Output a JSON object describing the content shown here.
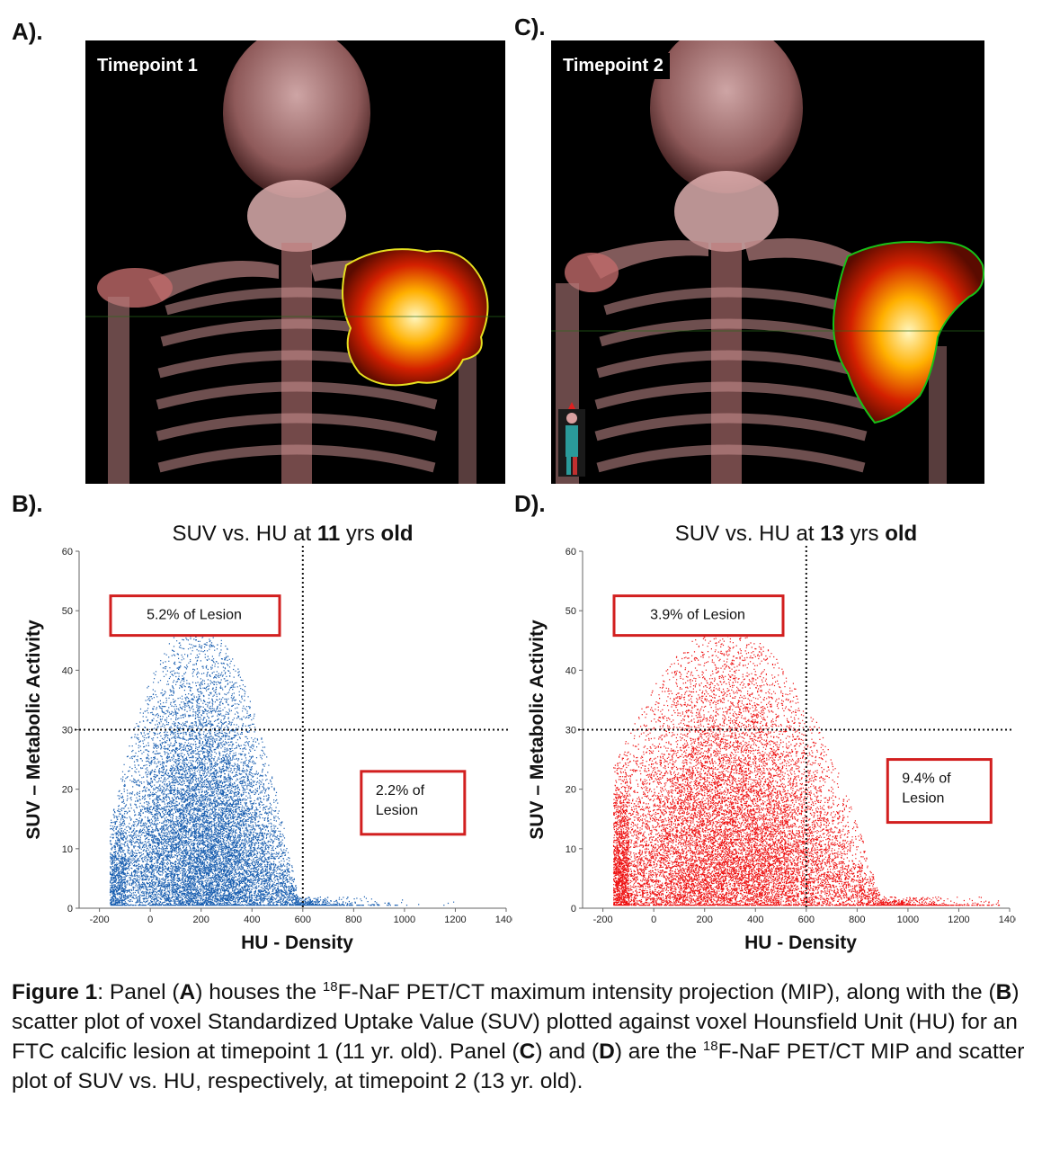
{
  "panels": {
    "A": {
      "letter": "A).",
      "label": "Timepoint 1"
    },
    "B": {
      "letter": "B)."
    },
    "C": {
      "letter": "C).",
      "label": "Timepoint 2"
    },
    "D": {
      "letter": "D)."
    }
  },
  "chart_data": [
    {
      "type": "scatter",
      "title_prefix": "SUV vs. HU at ",
      "title_bold_num": "11",
      "title_mid": " yrs ",
      "title_bold_end": "old",
      "xlabel": "HU - Density",
      "ylabel": "SUV – Metabolic Activity",
      "xlim": [
        -280,
        1400
      ],
      "ylim": [
        0,
        60
      ],
      "xticks": [
        -200,
        0,
        200,
        400,
        600,
        800,
        1000,
        1200,
        1400
      ],
      "yticks": [
        0,
        10,
        20,
        30,
        40,
        50,
        60
      ],
      "threshold_x": 600,
      "threshold_y": 30,
      "color": "#1a5fb0",
      "cloud": {
        "center_hu": 200,
        "spread_hu": 170,
        "max_hu": 1350,
        "peak_suv": 48,
        "n_points": 14000
      },
      "annotations": [
        {
          "text": "5.2% of Lesion",
          "region": "upper-left"
        },
        {
          "text_lines": [
            "2.2% of",
            "Lesion"
          ],
          "region": "right"
        }
      ]
    },
    {
      "type": "scatter",
      "title_prefix": "SUV vs. HU at ",
      "title_bold_num": "13",
      "title_mid": " yrs ",
      "title_bold_end": "old",
      "xlabel": "HU - Density",
      "ylabel": "SUV – Metabolic Activity",
      "xlim": [
        -280,
        1400
      ],
      "ylim": [
        0,
        60
      ],
      "xticks": [
        -200,
        0,
        200,
        400,
        600,
        800,
        1000,
        1200,
        1400
      ],
      "yticks": [
        0,
        10,
        20,
        30,
        40,
        50,
        60
      ],
      "threshold_x": 600,
      "threshold_y": 30,
      "color": "#ee1111",
      "cloud": {
        "center_hu": 300,
        "spread_hu": 260,
        "max_hu": 1380,
        "peak_suv": 47,
        "n_points": 16000
      },
      "annotations": [
        {
          "text": "3.9% of Lesion",
          "region": "upper-left"
        },
        {
          "text_lines": [
            "9.4% of",
            "Lesion"
          ],
          "region": "right"
        }
      ]
    }
  ],
  "caption": {
    "fig": "Figure 1",
    "t1": ": Panel (",
    "A": "A",
    "t2": ") houses the ",
    "sup1": "18",
    "t3": "F-NaF PET/CT maximum intensity projection (MIP), along with the (",
    "B": "B",
    "t4": ") scatter plot of voxel Standardized Uptake Value (SUV) plotted against voxel Hounsfield Unit (HU) for an FTC calcific lesion at timepoint 1 (11 yr. old).  Panel (",
    "C": "C",
    "t5": ") and (",
    "D": "D",
    "t6": ")  are the ",
    "sup2": "18",
    "t7": "F-NaF PET/CT MIP and scatter plot of SUV vs. HU, respectively, at timepoint 2 (13 yr. old)."
  }
}
